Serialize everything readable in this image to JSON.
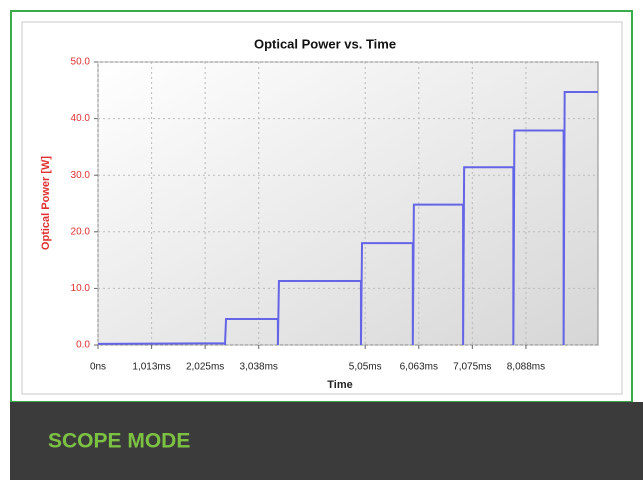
{
  "chart_data": {
    "type": "line",
    "title": "Optical Power vs. Time",
    "x_label": "Time",
    "y_label": "Optical Power [W]",
    "x": [
      0,
      2.4,
      2.4,
      2.42,
      3.4,
      3.4,
      3.42,
      4.97,
      4.97,
      4.99,
      5.95,
      5.95,
      5.97,
      6.9,
      6.9,
      6.92,
      7.85,
      7.85,
      7.87,
      8.8,
      8.8,
      8.82,
      9.45
    ],
    "values": [
      0.2,
      0.3,
      0,
      4.6,
      4.6,
      0,
      11.3,
      11.3,
      0,
      18,
      18,
      0,
      24.8,
      24.8,
      0,
      31.4,
      31.4,
      0,
      37.9,
      37.9,
      0,
      44.7,
      44.7
    ],
    "color": "#6464e6",
    "xlim": [
      0,
      9.45
    ],
    "xticks": [
      {
        "value": 0,
        "label": "0ns"
      },
      {
        "value": 1.013,
        "label": "1,013ms"
      },
      {
        "value": 2.025,
        "label": "2,025ms"
      },
      {
        "value": 3.038,
        "label": "3,038ms"
      },
      {
        "value": 5.05,
        "label": "5,05ms"
      },
      {
        "value": 6.063,
        "label": "6,063ms"
      },
      {
        "value": 7.075,
        "label": "7,075ms"
      },
      {
        "value": 8.088,
        "label": "8,088ms"
      }
    ],
    "ylim": [
      0,
      50
    ],
    "yticks": [
      {
        "value": 0,
        "label": "0.0"
      },
      {
        "value": 10,
        "label": "10.0"
      },
      {
        "value": 20,
        "label": "20.0"
      },
      {
        "value": 30,
        "label": "30.0"
      },
      {
        "value": 40,
        "label": "40.0"
      },
      {
        "value": 50,
        "label": "50.0"
      }
    ],
    "grid": true
  },
  "banner": {
    "title": "SCOPE MODE"
  }
}
